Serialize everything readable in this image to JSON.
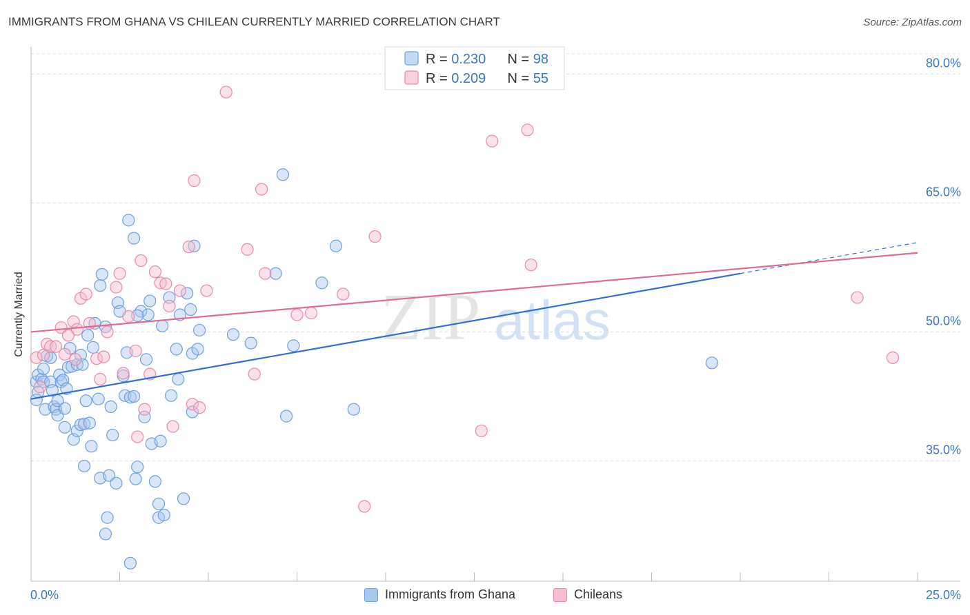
{
  "header": {
    "title": "IMMIGRANTS FROM GHANA VS CHILEAN CURRENTLY MARRIED CORRELATION CHART",
    "source": "Source: ZipAtlas.com"
  },
  "watermark": {
    "part1": "ZIP",
    "part2": "atlas"
  },
  "colors": {
    "ghana_fill": "#a9c8f0",
    "ghana_stroke": "#6f9fdc",
    "ghana_line": "#2f6fcf",
    "chile_fill": "#f6bcd0",
    "chile_stroke": "#e88aab",
    "chile_line": "#e06a93",
    "axis_label": "#3b75c4",
    "grid": "#dcdcdc"
  },
  "chart_data": {
    "type": "scatter",
    "ylabel": "Currently Married",
    "xlim": [
      0,
      25
    ],
    "ylim": [
      21,
      83
    ],
    "x_tick_labels": [
      {
        "value": 0,
        "label": "0.0%"
      },
      {
        "value": 25,
        "label": "25.0%"
      }
    ],
    "y_ticks": [
      {
        "value": 35,
        "label": "35.0%"
      },
      {
        "value": 50,
        "label": "50.0%"
      },
      {
        "value": 65,
        "label": "65.0%"
      },
      {
        "value": 80,
        "label": "80.0%"
      }
    ],
    "legend": [
      {
        "r_label": "R = ",
        "r_value": "0.230",
        "n_label": "N = ",
        "n_value": "98"
      },
      {
        "r_label": "R = ",
        "r_value": "0.209",
        "n_label": "N = ",
        "n_value": "55"
      }
    ],
    "series": [
      {
        "name": "Immigrants from Ghana",
        "trend_solid": {
          "x": [
            0,
            20
          ],
          "y": [
            42.2,
            56.8
          ]
        },
        "trend_dashed": {
          "x": [
            20,
            25
          ],
          "y": [
            56.8,
            60.4
          ]
        },
        "points": [
          [
            0.15,
            44.2
          ],
          [
            0.2,
            43.0
          ],
          [
            0.2,
            45.0
          ],
          [
            0.15,
            42.1
          ],
          [
            0.3,
            44.5
          ],
          [
            0.35,
            45.7
          ],
          [
            0.35,
            44.2
          ],
          [
            0.4,
            41.0
          ],
          [
            0.45,
            47.2
          ],
          [
            0.55,
            47.0
          ],
          [
            0.55,
            44.2
          ],
          [
            0.6,
            43.2
          ],
          [
            0.65,
            41.3
          ],
          [
            0.7,
            41.0
          ],
          [
            0.75,
            42.0
          ],
          [
            0.75,
            40.3
          ],
          [
            0.8,
            45.0
          ],
          [
            0.85,
            44.2
          ],
          [
            0.9,
            44.4
          ],
          [
            0.95,
            41.1
          ],
          [
            0.95,
            38.9
          ],
          [
            1.0,
            43.4
          ],
          [
            1.05,
            45.9
          ],
          [
            1.1,
            48.1
          ],
          [
            1.15,
            46.0
          ],
          [
            1.2,
            37.5
          ],
          [
            1.3,
            38.5
          ],
          [
            1.3,
            46.2
          ],
          [
            1.4,
            39.2
          ],
          [
            1.4,
            47.3
          ],
          [
            1.5,
            39.3
          ],
          [
            1.5,
            34.4
          ],
          [
            1.55,
            42.0
          ],
          [
            1.6,
            49.6
          ],
          [
            1.65,
            39.4
          ],
          [
            1.7,
            36.7
          ],
          [
            1.75,
            48.2
          ],
          [
            1.8,
            51.0
          ],
          [
            1.9,
            42.2
          ],
          [
            1.95,
            33.0
          ],
          [
            1.95,
            55.4
          ],
          [
            2.0,
            56.7
          ],
          [
            2.1,
            50.6
          ],
          [
            2.15,
            28.4
          ],
          [
            2.1,
            26.5
          ],
          [
            2.2,
            33.3
          ],
          [
            2.25,
            41.3
          ],
          [
            2.3,
            38.0
          ],
          [
            2.4,
            32.4
          ],
          [
            2.45,
            53.4
          ],
          [
            2.5,
            52.4
          ],
          [
            2.6,
            44.9
          ],
          [
            2.65,
            42.6
          ],
          [
            2.7,
            47.6
          ],
          [
            2.75,
            63.0
          ],
          [
            2.8,
            42.4
          ],
          [
            2.9,
            60.9
          ],
          [
            2.9,
            42.5
          ],
          [
            2.95,
            32.9
          ],
          [
            3.0,
            34.3
          ],
          [
            3.1,
            52.4
          ],
          [
            3.2,
            40.1
          ],
          [
            3.25,
            46.8
          ],
          [
            3.3,
            52.0
          ],
          [
            3.35,
            53.6
          ],
          [
            3.4,
            37.0
          ],
          [
            3.5,
            32.6
          ],
          [
            3.6,
            30.0
          ],
          [
            3.6,
            28.4
          ],
          [
            3.65,
            37.3
          ],
          [
            3.7,
            50.7
          ],
          [
            3.75,
            28.7
          ],
          [
            3.9,
            54.0
          ],
          [
            3.95,
            42.6
          ],
          [
            4.1,
            48.0
          ],
          [
            4.15,
            44.5
          ],
          [
            4.2,
            52.0
          ],
          [
            4.3,
            30.6
          ],
          [
            4.4,
            54.5
          ],
          [
            4.5,
            52.6
          ],
          [
            4.55,
            47.5
          ],
          [
            4.55,
            40.7
          ],
          [
            4.6,
            60.0
          ],
          [
            4.7,
            48.0
          ],
          [
            4.75,
            50.2
          ],
          [
            5.7,
            49.7
          ],
          [
            6.2,
            48.7
          ],
          [
            6.9,
            56.8
          ],
          [
            7.1,
            68.3
          ],
          [
            7.2,
            40.2
          ],
          [
            7.4,
            48.4
          ],
          [
            8.2,
            55.7
          ],
          [
            8.6,
            60.0
          ],
          [
            9.1,
            41.0
          ],
          [
            19.2,
            46.4
          ],
          [
            2.8,
            23.1
          ],
          [
            1.45,
            46.2
          ],
          [
            3.0,
            51.9
          ]
        ]
      },
      {
        "name": "Chileans",
        "trend_solid": {
          "x": [
            0,
            25
          ],
          "y": [
            50.0,
            59.2
          ]
        },
        "points": [
          [
            0.15,
            47.0
          ],
          [
            0.25,
            43.6
          ],
          [
            0.35,
            47.3
          ],
          [
            0.45,
            48.6
          ],
          [
            0.55,
            48.3
          ],
          [
            0.7,
            48.3
          ],
          [
            0.85,
            50.5
          ],
          [
            0.95,
            47.4
          ],
          [
            1.05,
            49.6
          ],
          [
            1.2,
            51.2
          ],
          [
            1.3,
            50.3
          ],
          [
            1.4,
            53.9
          ],
          [
            1.55,
            54.4
          ],
          [
            1.65,
            51.0
          ],
          [
            1.85,
            46.9
          ],
          [
            1.95,
            44.5
          ],
          [
            2.05,
            47.1
          ],
          [
            2.15,
            50.0
          ],
          [
            2.4,
            55.2
          ],
          [
            2.5,
            56.8
          ],
          [
            2.6,
            45.2
          ],
          [
            2.75,
            51.8
          ],
          [
            2.95,
            47.8
          ],
          [
            3.1,
            58.3
          ],
          [
            3.2,
            41.0
          ],
          [
            3.35,
            45.1
          ],
          [
            3.5,
            57.0
          ],
          [
            3.65,
            55.7
          ],
          [
            3.8,
            55.6
          ],
          [
            3.9,
            53.0
          ],
          [
            4.0,
            39.0
          ],
          [
            4.2,
            54.8
          ],
          [
            4.45,
            59.9
          ],
          [
            4.55,
            41.6
          ],
          [
            4.6,
            67.6
          ],
          [
            4.75,
            41.2
          ],
          [
            4.95,
            54.8
          ],
          [
            5.5,
            77.9
          ],
          [
            6.1,
            59.6
          ],
          [
            6.3,
            45.1
          ],
          [
            6.5,
            66.6
          ],
          [
            6.6,
            56.8
          ],
          [
            7.5,
            52.0
          ],
          [
            7.9,
            52.2
          ],
          [
            8.8,
            54.4
          ],
          [
            9.4,
            29.7
          ],
          [
            9.7,
            61.1
          ],
          [
            12.7,
            38.5
          ],
          [
            13.0,
            72.2
          ],
          [
            14.0,
            73.5
          ],
          [
            14.1,
            57.8
          ],
          [
            23.3,
            54.0
          ],
          [
            24.3,
            47.0
          ],
          [
            3.0,
            37.8
          ],
          [
            1.25,
            46.8
          ]
        ]
      }
    ]
  }
}
